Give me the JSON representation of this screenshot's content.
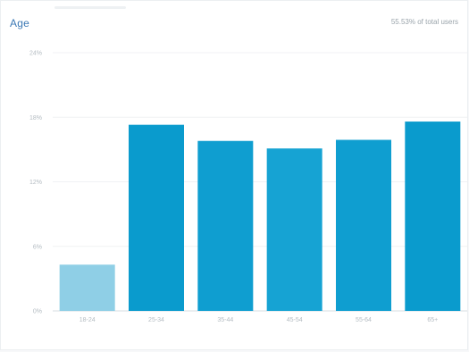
{
  "card": {
    "title": "Age",
    "subtitle": "55.53% of total users"
  },
  "chart_data": {
    "type": "bar",
    "title": "Age",
    "categories": [
      "18-24",
      "25-34",
      "35-44",
      "45-54",
      "55-64",
      "65+"
    ],
    "values": [
      4.3,
      17.3,
      15.8,
      15.1,
      15.9,
      17.6
    ],
    "ylim": [
      0,
      24
    ],
    "yticks": [
      0,
      6,
      12,
      18,
      24
    ],
    "ytick_labels": [
      "0%",
      "6%",
      "12%",
      "18%",
      "24%"
    ],
    "bar_colors": [
      "#8fcfe6",
      "#0a9bcd",
      "#0f9ed0",
      "#16a3d3",
      "#0f9ed0",
      "#0a9bcd"
    ],
    "grid": true
  }
}
